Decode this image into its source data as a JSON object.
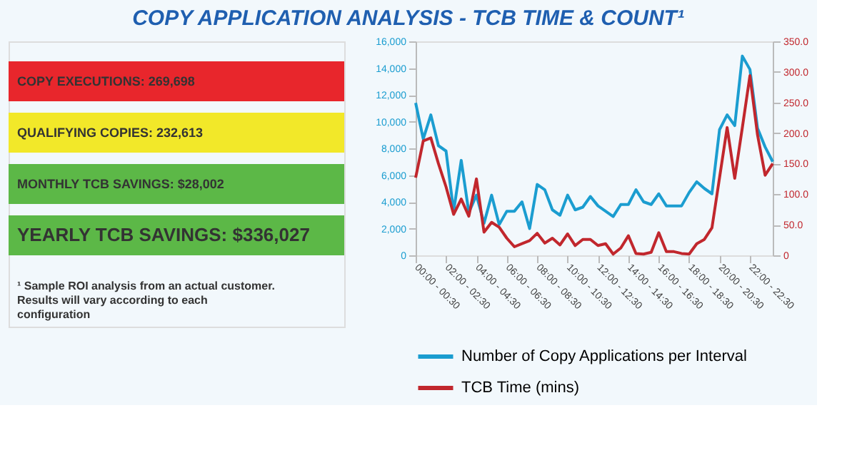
{
  "chart_data": [
    {
      "type": "other",
      "annotations": [
        "COPY EXECUTIONS: 269,698",
        "QUALIFYING COPIES: 232,613",
        "MONTHLY TCB SAVINGS: $28,002",
        "YEARLY TCB SAVINGS: $336,027",
        "¹ Sample ROI analysis from an actual customer. Results will vary according to each configuration"
      ],
      "colors": [
        "#e8262c",
        "#f2e829",
        "#5cb847",
        "#5cb847",
        null
      ]
    },
    {
      "type": "line",
      "title": "COPY APPLICATION ANALYSIS - TCB TIME & COUNT¹",
      "categories": [
        "00:00 - 00:30",
        null,
        null,
        null,
        "02:00 - 02:30",
        null,
        null,
        null,
        "04:00 - 04:30",
        null,
        null,
        null,
        "06:00 - 06:30",
        null,
        null,
        null,
        "08:00 - 08:30",
        null,
        null,
        null,
        "10:00 - 10:30",
        null,
        null,
        null,
        "12:00 - 12:30",
        null,
        null,
        null,
        "14:00 - 14:30",
        null,
        null,
        null,
        "16:00 - 16:30",
        null,
        null,
        null,
        "18:00 - 18:30",
        null,
        null,
        null,
        "20:00 - 20:30",
        null,
        null,
        null,
        "22:00 - 22:30",
        null,
        null,
        null
      ],
      "series": [
        {
          "name": "Number of Copy Applications per Interval",
          "color": "#1b9dd0",
          "values": [
            11400,
            8700,
            10500,
            8200,
            7800,
            3300,
            7100,
            3200,
            4500,
            2400,
            4500,
            2300,
            3300,
            3300,
            4000,
            2000,
            5300,
            4900,
            3400,
            3000,
            4500,
            3400,
            3600,
            4400,
            3700,
            3300,
            2900,
            3800,
            3800,
            4900,
            4000,
            3800,
            4600,
            3700,
            3700,
            3700,
            4700,
            5500,
            5000,
            4600,
            9400,
            10500,
            9700,
            14900,
            13900,
            9500,
            8100,
            7000
          ]
        },
        {
          "name": "TCB Time (mins)",
          "color": "#c1272d",
          "axis": "y2",
          "values": [
            127,
            187,
            192,
            150,
            112,
            67,
            92,
            64,
            125,
            38,
            54,
            46,
            28,
            14,
            19,
            24,
            36,
            20,
            28,
            17,
            35,
            16,
            26,
            26,
            16,
            19,
            2,
            12,
            32,
            3,
            2,
            5,
            37,
            6,
            6,
            3,
            2,
            19,
            26,
            45,
            127,
            209,
            126,
            209,
            294,
            197,
            131,
            150
          ]
        }
      ],
      "ylim": [
        0,
        16000
      ],
      "yticks": [
        {
          "value": 0,
          "label": "0"
        },
        {
          "value": 2000,
          "label": "2,000"
        },
        {
          "value": 4000,
          "label": "4,000"
        },
        {
          "value": 6000,
          "label": "6,000"
        },
        {
          "value": 8000,
          "label": "8,000"
        },
        {
          "value": 10000,
          "label": "10,000"
        },
        {
          "value": 12000,
          "label": "12,000"
        },
        {
          "value": 14000,
          "label": "14,000"
        },
        {
          "value": 16000,
          "label": "16,000"
        }
      ],
      "y2lim": [
        0,
        350
      ],
      "y2ticks": [
        {
          "value": 0,
          "label": "0"
        },
        {
          "value": 50,
          "label": "50.0"
        },
        {
          "value": 100,
          "label": "100.0"
        },
        {
          "value": 150,
          "label": "150.0"
        },
        {
          "value": 200,
          "label": "200.0"
        },
        {
          "value": 250,
          "label": "250.0"
        },
        {
          "value": 300,
          "label": "300.0"
        },
        {
          "value": 350,
          "label": "350.0"
        }
      ],
      "grid": false,
      "legend": "bottom",
      "marker": "none",
      "line_style": "solid"
    }
  ]
}
